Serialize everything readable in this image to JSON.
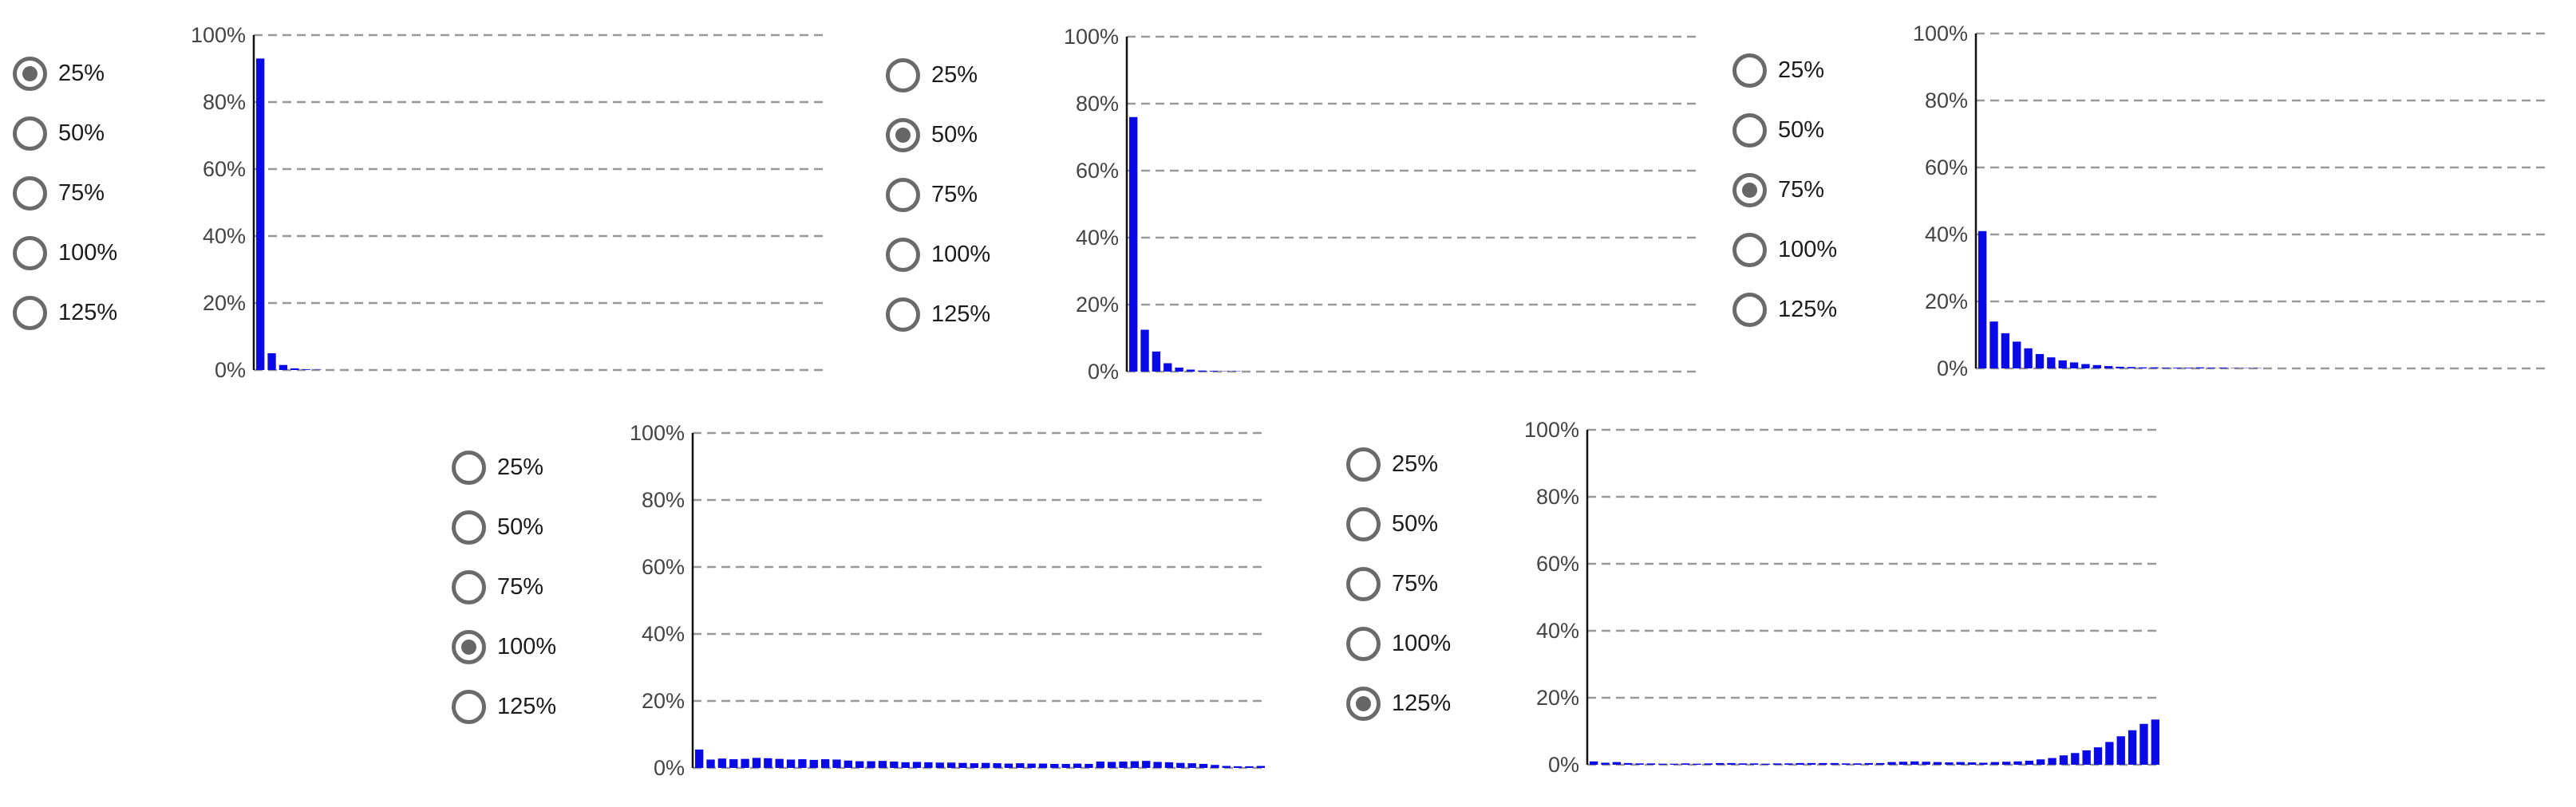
{
  "radio_options": [
    "25%",
    "50%",
    "75%",
    "100%",
    "125%"
  ],
  "panels": [
    {
      "selected_index": 0
    },
    {
      "selected_index": 1
    },
    {
      "selected_index": 2
    },
    {
      "selected_index": 3
    },
    {
      "selected_index": 4
    }
  ],
  "colors": {
    "bar": "#0a0ae6",
    "grid": "#999999",
    "axis": "#111111",
    "radio": "#666666"
  },
  "chart_data": [
    {
      "type": "bar",
      "title": "",
      "xlabel": "",
      "ylabel": "",
      "ylim": [
        0,
        100
      ],
      "yticks": [
        "0%",
        "20%",
        "40%",
        "60%",
        "80%",
        "100%"
      ],
      "grid": "horizontal-dashed",
      "values": [
        93,
        5,
        1.5,
        0.5,
        0.2,
        0.1,
        0,
        0,
        0,
        0,
        0,
        0,
        0,
        0,
        0,
        0,
        0,
        0,
        0,
        0,
        0,
        0,
        0,
        0,
        0,
        0,
        0,
        0,
        0,
        0,
        0,
        0,
        0,
        0,
        0,
        0,
        0,
        0,
        0,
        0,
        0,
        0,
        0,
        0,
        0,
        0,
        0,
        0,
        0,
        0
      ]
    },
    {
      "type": "bar",
      "title": "",
      "xlabel": "",
      "ylabel": "",
      "ylim": [
        0,
        100
      ],
      "yticks": [
        "0%",
        "20%",
        "40%",
        "60%",
        "80%",
        "100%"
      ],
      "grid": "horizontal-dashed",
      "values": [
        76,
        12.5,
        6,
        2.5,
        1.2,
        0.6,
        0.3,
        0.2,
        0.1,
        0.1,
        0,
        0,
        0,
        0,
        0,
        0,
        0,
        0,
        0,
        0,
        0,
        0,
        0,
        0,
        0,
        0,
        0,
        0,
        0,
        0,
        0,
        0,
        0,
        0,
        0,
        0,
        0,
        0,
        0,
        0,
        0,
        0,
        0,
        0,
        0,
        0,
        0,
        0,
        0,
        0
      ]
    },
    {
      "type": "bar",
      "title": "",
      "xlabel": "",
      "ylabel": "",
      "ylim": [
        0,
        100
      ],
      "yticks": [
        "0%",
        "20%",
        "40%",
        "60%",
        "80%",
        "100%"
      ],
      "grid": "horizontal-dashed",
      "values": [
        41,
        14,
        10.5,
        8,
        6,
        4.3,
        3.3,
        2.4,
        1.8,
        1.3,
        1,
        0.7,
        0.5,
        0.4,
        0.3,
        0.3,
        0.2,
        0.2,
        0.2,
        0.3,
        0.2,
        0.2,
        0.1,
        0.1,
        0.1,
        0,
        0,
        0,
        0,
        0,
        0,
        0,
        0,
        0,
        0,
        0,
        0,
        0,
        0,
        0,
        0,
        0,
        0,
        0,
        0,
        0,
        0,
        0,
        0,
        0
      ]
    },
    {
      "type": "bar",
      "title": "",
      "xlabel": "",
      "ylabel": "",
      "ylim": [
        0,
        100
      ],
      "yticks": [
        "0%",
        "20%",
        "40%",
        "60%",
        "80%",
        "100%"
      ],
      "grid": "horizontal-dashed",
      "values": [
        5.5,
        2.5,
        2.8,
        2.6,
        2.7,
        3,
        2.9,
        2.7,
        2.5,
        2.6,
        2.4,
        2.6,
        2.5,
        2.2,
        2,
        2,
        2.1,
        1.9,
        1.7,
        1.8,
        1.7,
        1.6,
        1.6,
        1.5,
        1.4,
        1.5,
        1.4,
        1.3,
        1.4,
        1.3,
        1.3,
        1.2,
        1.2,
        1.3,
        1.2,
        1.9,
        1.8,
        1.9,
        2,
        2.1,
        1.8,
        1.7,
        1.5,
        1.4,
        1.2,
        0.9,
        0.6,
        0.5,
        0.5,
        0.6
      ]
    },
    {
      "type": "bar",
      "title": "",
      "xlabel": "",
      "ylabel": "",
      "ylim": [
        0,
        100
      ],
      "yticks": [
        "0%",
        "20%",
        "40%",
        "60%",
        "80%",
        "100%"
      ],
      "grid": "horizontal-dashed",
      "values": [
        1,
        0.6,
        0.8,
        0.5,
        0.4,
        0.4,
        0.3,
        0.3,
        0.4,
        0.3,
        0.4,
        0.5,
        0.5,
        0.4,
        0.4,
        0.3,
        0.4,
        0.4,
        0.5,
        0.5,
        0.5,
        0.5,
        0.4,
        0.4,
        0.5,
        0.5,
        0.8,
        0.9,
        1,
        0.9,
        0.8,
        0.7,
        0.8,
        0.7,
        0.6,
        0.8,
        0.9,
        1,
        1.2,
        1.6,
        2,
        2.8,
        3.5,
        4.3,
        5.2,
        6.8,
        8.5,
        10.3,
        12.2,
        13.5
      ]
    }
  ]
}
